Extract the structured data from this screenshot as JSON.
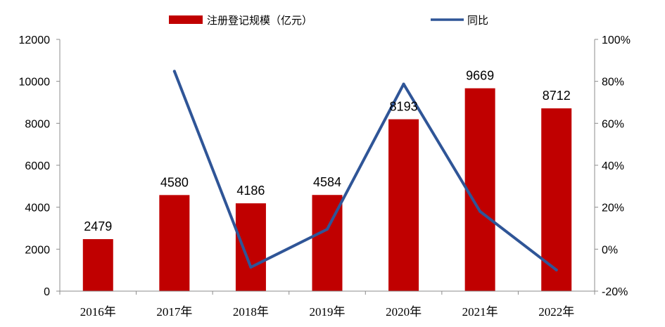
{
  "chart_data": {
    "type": "bar",
    "categories": [
      "2016年",
      "2017年",
      "2018年",
      "2019年",
      "2020年",
      "2021年",
      "2022年"
    ],
    "series": [
      {
        "name": "注册登记规模（亿元）",
        "type": "bar",
        "axis": "left",
        "color": "#C00000",
        "values": [
          2479,
          4580,
          4186,
          4584,
          8193,
          9669,
          8712
        ],
        "data_labels": [
          "2479",
          "4580",
          "4186",
          "4584",
          "8193",
          "9669",
          "8712"
        ]
      },
      {
        "name": "同比",
        "type": "line",
        "axis": "right",
        "color": "#2F5597",
        "values": [
          null,
          84.8,
          -8.6,
          9.5,
          78.7,
          18.0,
          -9.9
        ]
      }
    ],
    "y_left": {
      "ylim": [
        0,
        12000
      ],
      "ticks": [
        "0",
        "2000",
        "4000",
        "6000",
        "8000",
        "10000",
        "12000"
      ]
    },
    "y_right": {
      "ylim": [
        -20,
        100
      ],
      "ticks": [
        "-20%",
        "0%",
        "20%",
        "40%",
        "60%",
        "80%",
        "100%"
      ]
    },
    "legend_position": "top-center",
    "grid": false
  }
}
